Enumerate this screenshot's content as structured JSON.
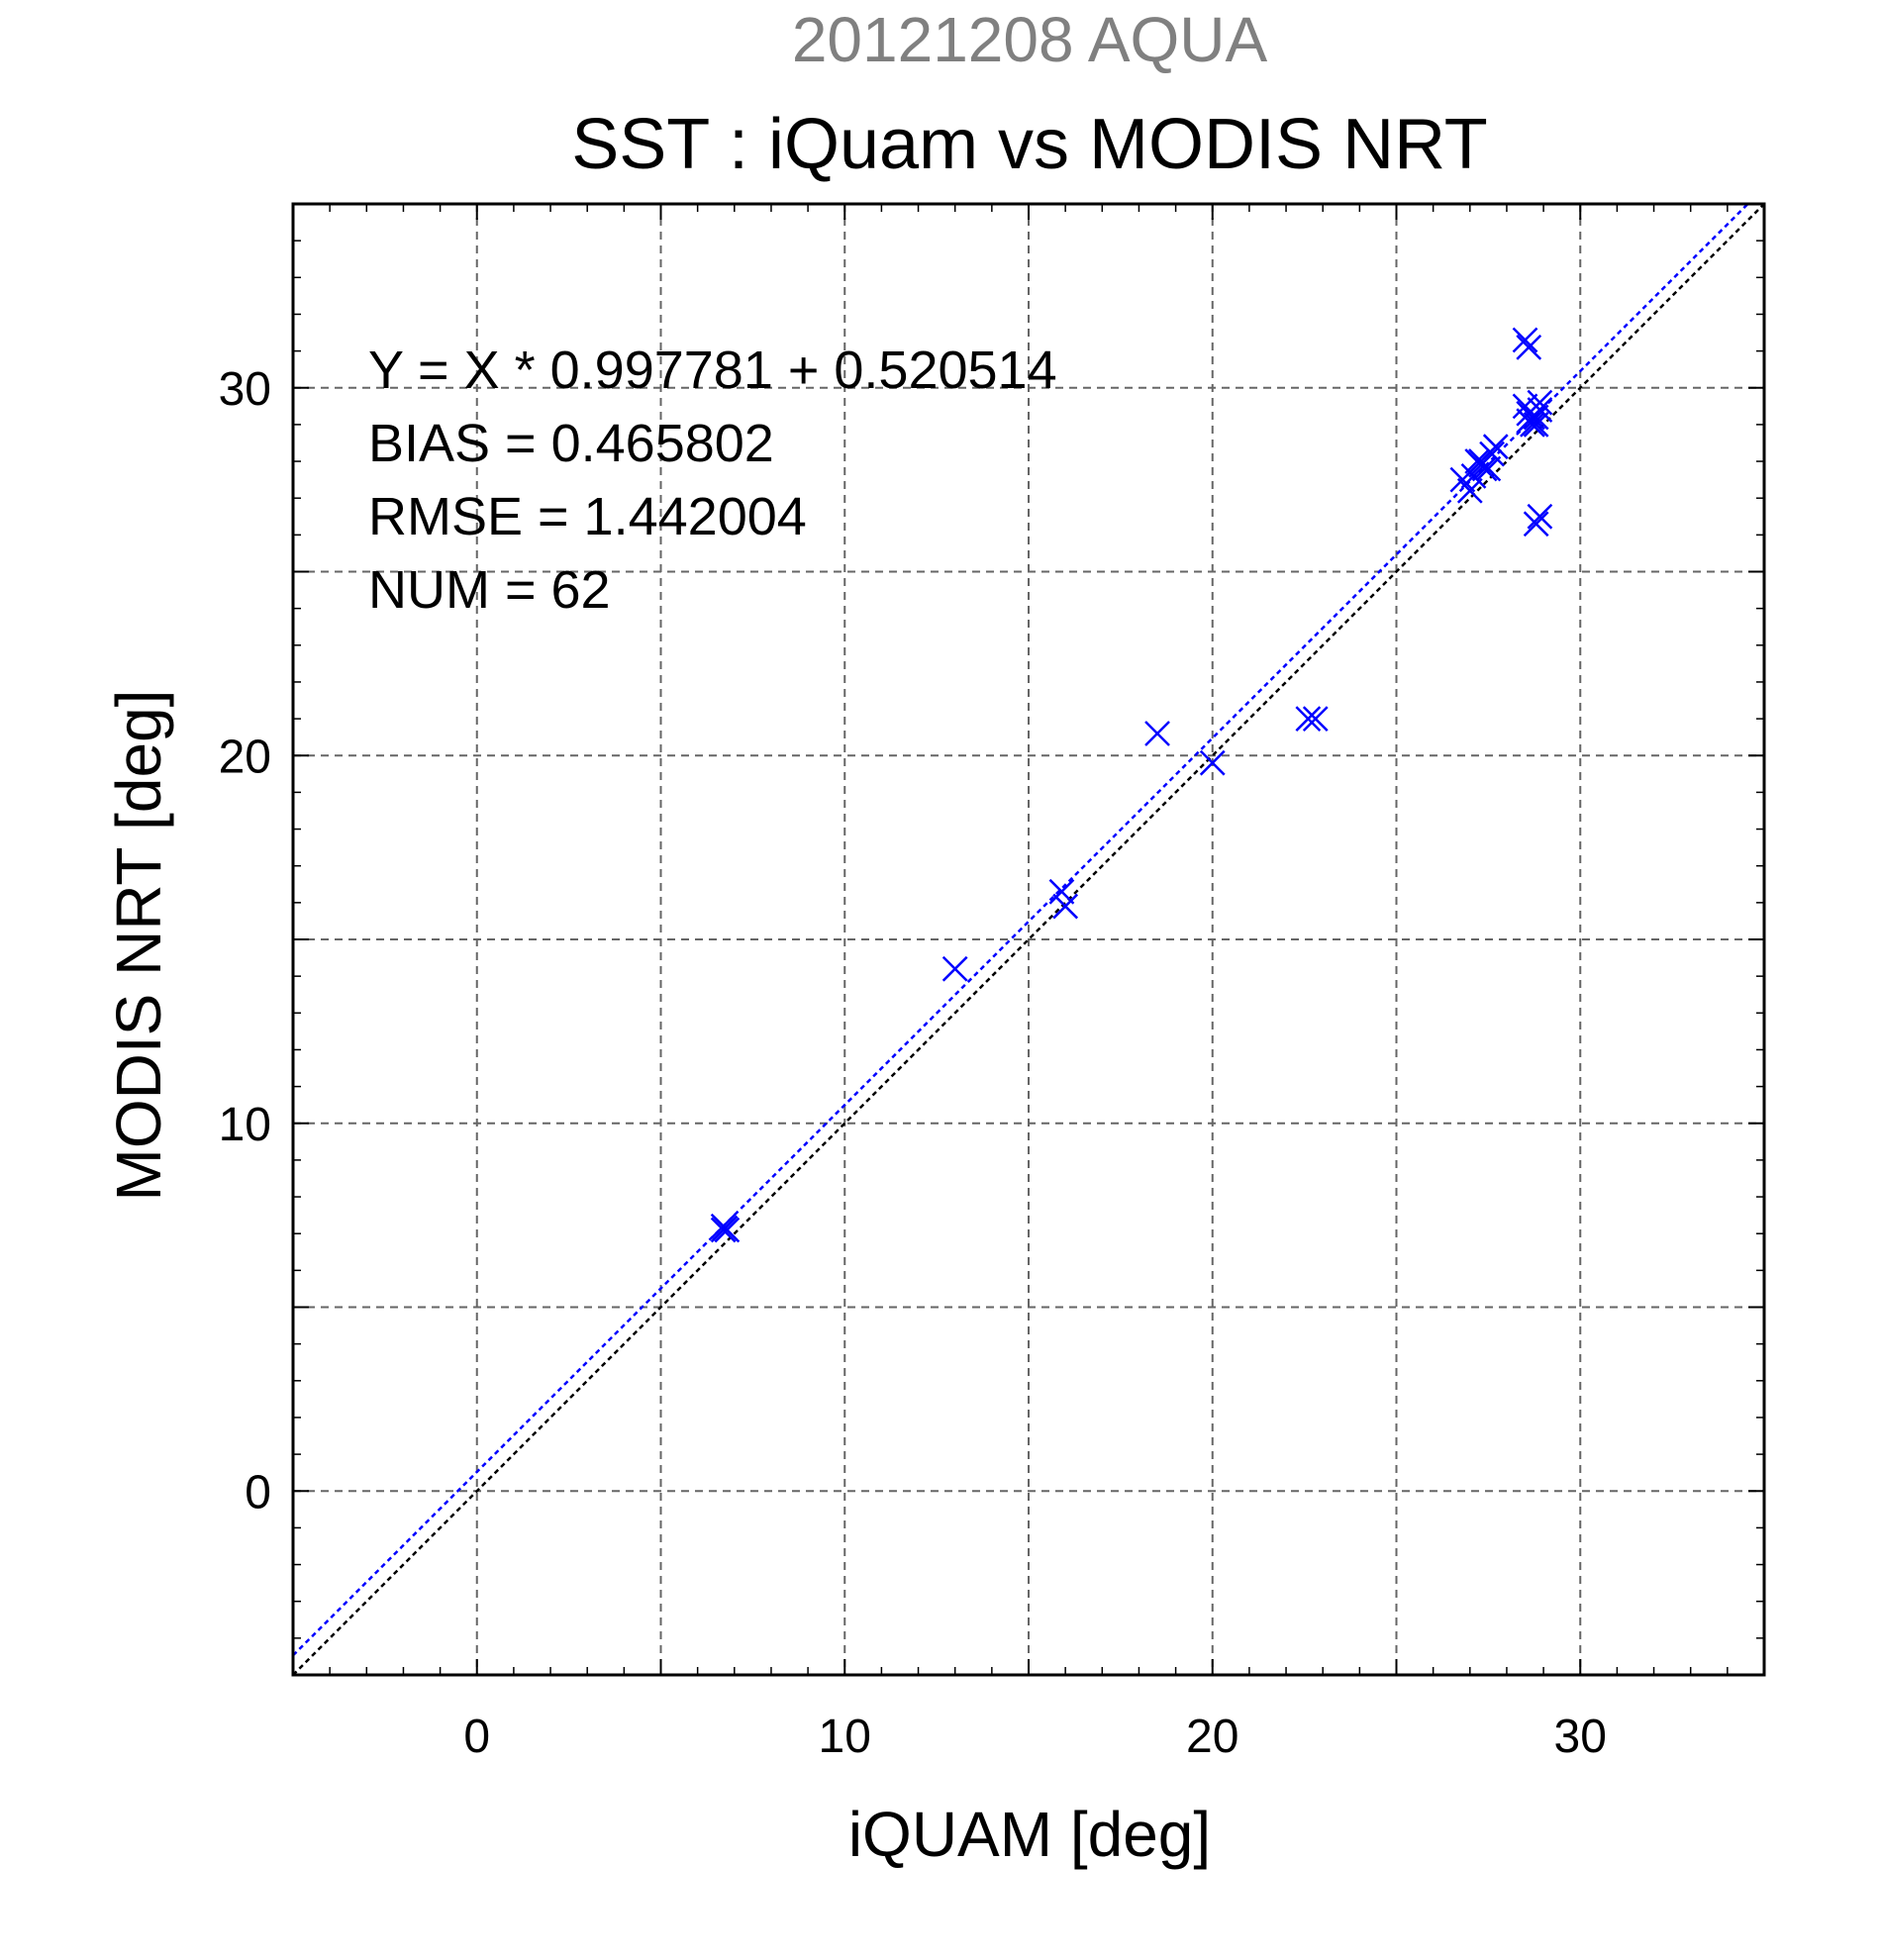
{
  "chart_data": {
    "type": "scatter",
    "supertitle": "20121208 AQUA",
    "title": "SST : iQuam vs MODIS NRT",
    "xlabel": "iQUAM [deg]",
    "ylabel": "MODIS NRT [deg]",
    "xlim": [
      -5,
      35
    ],
    "ylim": [
      -5,
      35
    ],
    "xticks": [
      0,
      10,
      20,
      30
    ],
    "yticks": [
      0,
      10,
      20,
      30
    ],
    "xtick_labels": [
      "0",
      "10",
      "20",
      "30"
    ],
    "ytick_labels": [
      "0",
      "10",
      "20",
      "30"
    ],
    "grid_major_step": 5,
    "minor_tick_step": 1,
    "grid": true,
    "stats": [
      "Y = X * 0.997781 + 0.520514",
      "BIAS = 0.465802",
      "RMSE = 1.442004",
      "NUM = 62"
    ],
    "fit": {
      "slope": 0.997781,
      "intercept": 0.520514,
      "color": "#0000ff"
    },
    "reference_line": {
      "slope": 1,
      "intercept": 0,
      "color": "#000000"
    },
    "marker": "x",
    "marker_color": "#0000ff",
    "series": [
      {
        "points": [
          [
            6.7,
            7.2
          ],
          [
            6.8,
            7.1
          ],
          [
            6.75,
            7.15
          ],
          [
            6.7,
            7.1
          ],
          [
            13.0,
            14.2
          ],
          [
            15.9,
            16.3
          ],
          [
            16.0,
            15.9
          ],
          [
            18.5,
            20.6
          ],
          [
            20.0,
            19.8
          ],
          [
            22.6,
            21.0
          ],
          [
            22.8,
            21.0
          ],
          [
            26.8,
            27.5
          ],
          [
            27.0,
            27.2
          ],
          [
            27.1,
            27.6
          ],
          [
            27.2,
            28.0
          ],
          [
            27.3,
            27.9
          ],
          [
            27.4,
            27.8
          ],
          [
            27.5,
            27.8
          ],
          [
            27.6,
            28.2
          ],
          [
            27.7,
            28.4
          ],
          [
            27.3,
            28.0
          ],
          [
            28.5,
            31.3
          ],
          [
            28.6,
            31.1
          ],
          [
            28.5,
            29.5
          ],
          [
            28.6,
            29.3
          ],
          [
            28.7,
            29.0
          ],
          [
            28.8,
            29.2
          ],
          [
            28.9,
            29.4
          ],
          [
            28.9,
            29.6
          ],
          [
            28.8,
            29.0
          ],
          [
            28.7,
            29.2
          ],
          [
            28.6,
            29.1
          ],
          [
            28.8,
            26.3
          ],
          [
            28.9,
            26.5
          ]
        ]
      }
    ]
  }
}
